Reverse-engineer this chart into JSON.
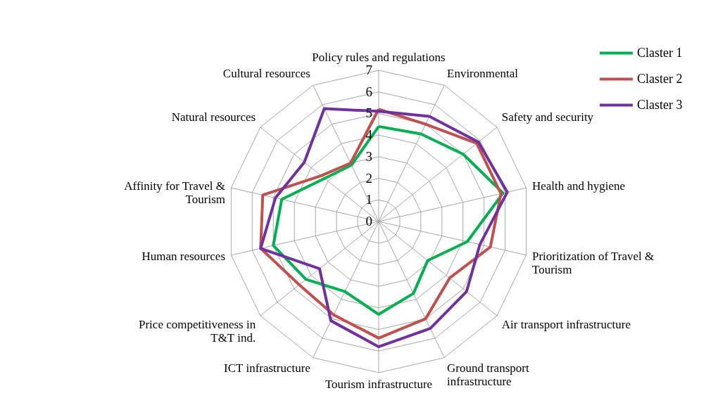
{
  "chart_data": {
    "type": "radar",
    "categories": [
      "Policy rules and regulations",
      "Environmental",
      "Safety and security",
      "Health and hygiene",
      "Prioritization of Travel & Tourism",
      "Air transport infrastructure",
      "Ground transport infrastructure",
      "Tourism infrastructure",
      "ICT infrastructure",
      "Price competitiveness in T&T ind.",
      "Human resources",
      "Affinity for Travel & Tourism",
      "Natural resources",
      "Cultural resources"
    ],
    "series": [
      {
        "name": "Claster 1",
        "color": "#00b050",
        "values": [
          4.4,
          4.5,
          5.0,
          5.9,
          4.2,
          2.9,
          3.7,
          4.3,
          3.6,
          4.3,
          5.0,
          4.6,
          3.2,
          2.9
        ]
      },
      {
        "name": "Claster 2",
        "color": "#c0504d",
        "values": [
          5.2,
          5.0,
          5.8,
          5.8,
          5.3,
          4.2,
          5.0,
          5.4,
          4.8,
          4.7,
          5.6,
          5.5,
          3.4,
          3.0
        ]
      },
      {
        "name": "Claster 3",
        "color": "#7030a0",
        "values": [
          5.1,
          5.4,
          5.9,
          6.1,
          4.8,
          5.2,
          5.5,
          5.8,
          5.1,
          3.5,
          5.6,
          4.9,
          4.4,
          5.8
        ]
      }
    ],
    "ylim": [
      0,
      7
    ],
    "yticks": [
      0,
      1,
      2,
      3,
      4,
      5,
      6,
      7
    ],
    "grid": true,
    "legend": "top right",
    "marker": "none",
    "line_style": "solid"
  }
}
